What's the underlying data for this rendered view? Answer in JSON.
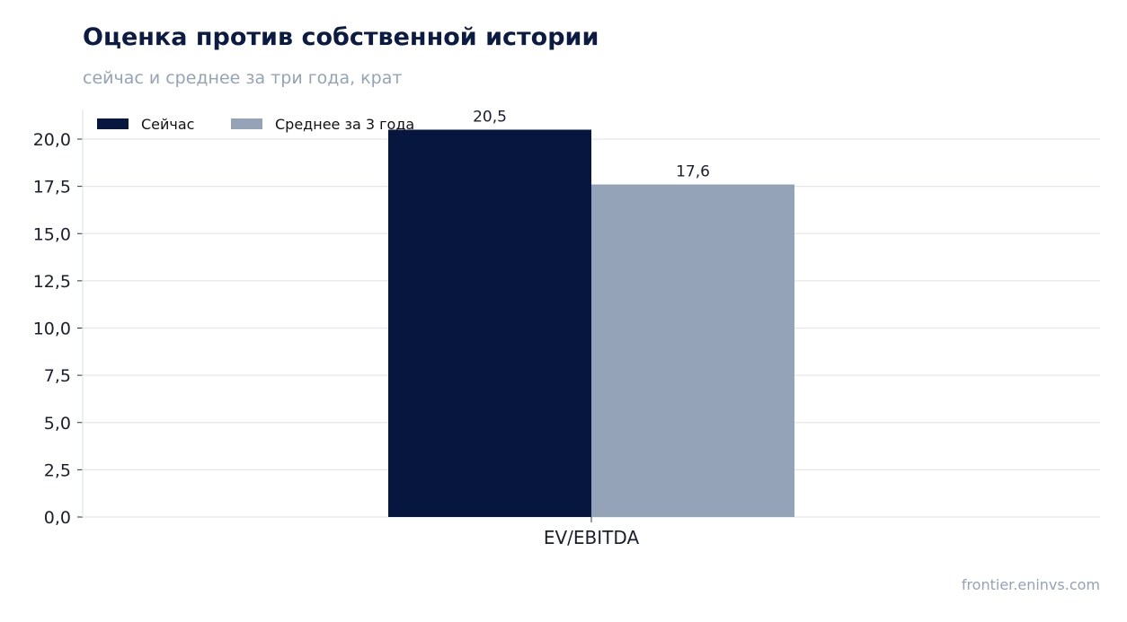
{
  "header": {
    "title": "Оценка против собственной истории",
    "subtitle": "сейчас и среднее за три года, крат"
  },
  "footer": {
    "source": "frontier.eninvs.com"
  },
  "chart_data": {
    "type": "bar",
    "title": "Оценка против собственной истории",
    "subtitle": "сейчас и среднее за три года, крат",
    "categories": [
      "EV/EBITDA"
    ],
    "series": [
      {
        "name": "Сейчас",
        "values": [
          20.5
        ],
        "color": "#06163f",
        "labels": [
          "20,5"
        ]
      },
      {
        "name": "Среднее за 3 года",
        "values": [
          17.6
        ],
        "color": "#94a3b8",
        "labels": [
          "17,6"
        ]
      }
    ],
    "ylim": [
      0,
      21.5
    ],
    "yticks": [
      0,
      2.5,
      5,
      7.5,
      10,
      12.5,
      15,
      17.5,
      20
    ],
    "ytick_labels": [
      "0,0",
      "2,5",
      "5,0",
      "7,5",
      "10,0",
      "12,5",
      "15,0",
      "17,5",
      "20,0"
    ],
    "xlabel": "",
    "ylabel": "",
    "grid": true,
    "legend_position": "top-left"
  }
}
